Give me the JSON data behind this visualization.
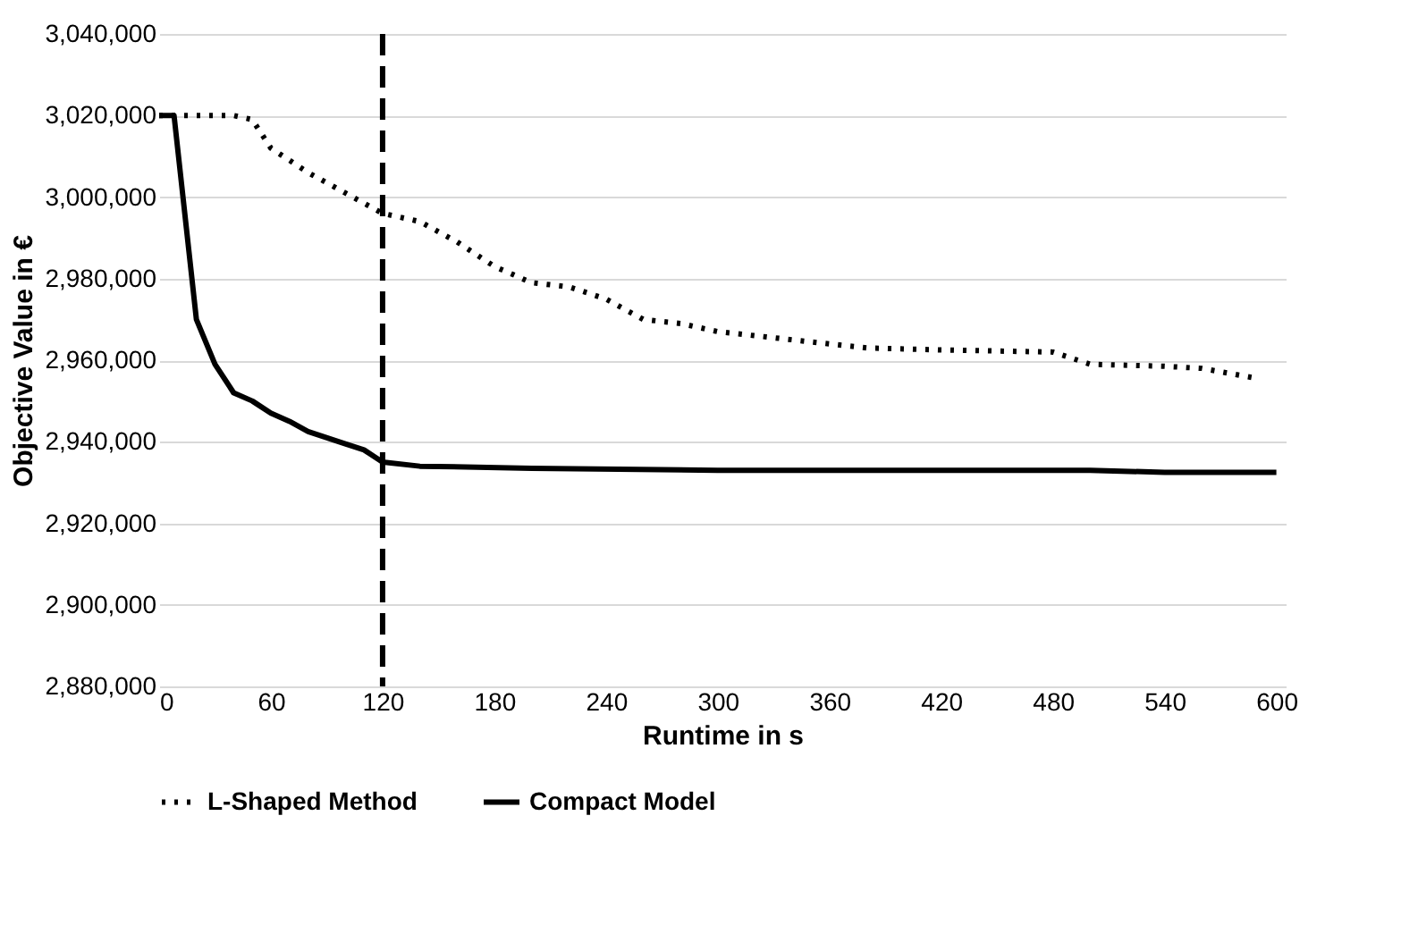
{
  "chart_data": {
    "type": "line",
    "xlabel": "Runtime in s",
    "ylabel": "Objective Value in €",
    "xlim": [
      0,
      605
    ],
    "xticks": [
      0,
      60,
      120,
      180,
      240,
      300,
      360,
      420,
      480,
      540,
      600
    ],
    "ylim": [
      2880000,
      3040000
    ],
    "yticks": [
      {
        "value": 2880000,
        "label": "2,880,000"
      },
      {
        "value": 2900000,
        "label": "2,900,000"
      },
      {
        "value": 2920000,
        "label": "2,920,000"
      },
      {
        "value": 2940000,
        "label": "2,940,000"
      },
      {
        "value": 2960000,
        "label": "2,960,000"
      },
      {
        "value": 2980000,
        "label": "2,980,000"
      },
      {
        "value": 3000000,
        "label": "3,000,000"
      },
      {
        "value": 3020000,
        "label": "3,020,000"
      },
      {
        "value": 3040000,
        "label": "3,040,000"
      }
    ],
    "grid": "y",
    "legend": "bottom",
    "marker": "none",
    "ref_lines": [
      {
        "axis": "x",
        "value": 120,
        "color": "#000000",
        "line_style": "dashed"
      }
    ],
    "series": [
      {
        "name": "L-Shaped Method",
        "color": "#000000",
        "line_style": "dotted",
        "x": [
          0,
          20,
          40,
          50,
          60,
          80,
          100,
          120,
          140,
          160,
          180,
          200,
          220,
          240,
          260,
          280,
          300,
          320,
          340,
          360,
          380,
          420,
          480,
          500,
          540,
          560,
          590
        ],
        "values": [
          3020000,
          3020000,
          3020000,
          3019000,
          3012000,
          3006000,
          3001000,
          2996000,
          2994000,
          2989000,
          2983000,
          2979000,
          2978000,
          2975000,
          2970000,
          2969000,
          2967000,
          2966000,
          2965000,
          2964000,
          2963000,
          2962500,
          2962000,
          2959000,
          2958500,
          2958000,
          2955500
        ]
      },
      {
        "name": "Compact Model",
        "color": "#000000",
        "line_style": "solid",
        "x": [
          0,
          8,
          20,
          30,
          40,
          50,
          60,
          70,
          80,
          100,
          110,
          120,
          140,
          200,
          300,
          500,
          540,
          600
        ],
        "values": [
          3020000,
          3020000,
          2970000,
          2959000,
          2952000,
          2950000,
          2947000,
          2945000,
          2942500,
          2939500,
          2938000,
          2935000,
          2934000,
          2933500,
          2933000,
          2933000,
          2932500,
          2932500
        ]
      }
    ]
  }
}
